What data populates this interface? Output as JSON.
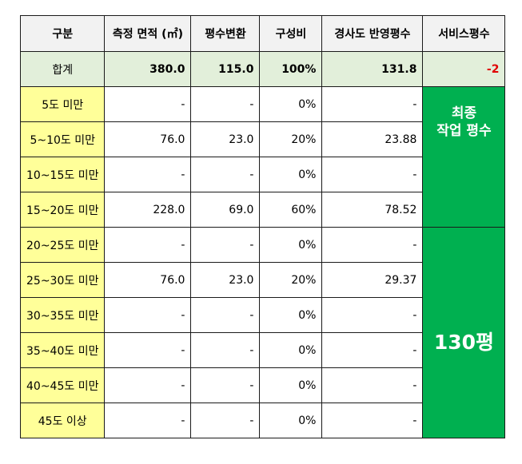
{
  "header": {
    "col_category": "구분",
    "col_area": "측정 면적 (㎡)",
    "col_pyeong": "평수변환",
    "col_ratio": "구성비",
    "col_slope": "경사도 반영평수",
    "col_service": "서비스평수"
  },
  "total": {
    "label": "합계",
    "area": "380.0",
    "pyeong": "115.0",
    "ratio": "100%",
    "slope": "131.8",
    "service": "-2"
  },
  "rows": [
    {
      "label": "5도 미만",
      "area": "-",
      "pyeong": "-",
      "ratio": "0%",
      "slope": "-"
    },
    {
      "label": "5~10도 미만",
      "area": "76.0",
      "pyeong": "23.0",
      "ratio": "20%",
      "slope": "23.88"
    },
    {
      "label": "10~15도 미만",
      "area": "-",
      "pyeong": "-",
      "ratio": "0%",
      "slope": "-"
    },
    {
      "label": "15~20도 미만",
      "area": "228.0",
      "pyeong": "69.0",
      "ratio": "60%",
      "slope": "78.52"
    },
    {
      "label": "20~25도 미만",
      "area": "-",
      "pyeong": "-",
      "ratio": "0%",
      "slope": "-"
    },
    {
      "label": "25~30도 미만",
      "area": "76.0",
      "pyeong": "23.0",
      "ratio": "20%",
      "slope": "29.37"
    },
    {
      "label": "30~35도 미만",
      "area": "-",
      "pyeong": "-",
      "ratio": "0%",
      "slope": "-"
    },
    {
      "label": "35~40도 미만",
      "area": "-",
      "pyeong": "-",
      "ratio": "0%",
      "slope": "-"
    },
    {
      "label": "40~45도 미만",
      "area": "-",
      "pyeong": "-",
      "ratio": "0%",
      "slope": "-"
    },
    {
      "label": "45도 이상",
      "area": "-",
      "pyeong": "-",
      "ratio": "0%",
      "slope": "-"
    }
  ],
  "final": {
    "line1": "최종",
    "line2": "작업 평수",
    "value": "130평"
  },
  "colors": {
    "label_bg": "#ffff99",
    "total_bg": "#e2efda",
    "header_bg": "#f2f2f2",
    "final_bg": "#00b050",
    "negative": "#e00000"
  }
}
